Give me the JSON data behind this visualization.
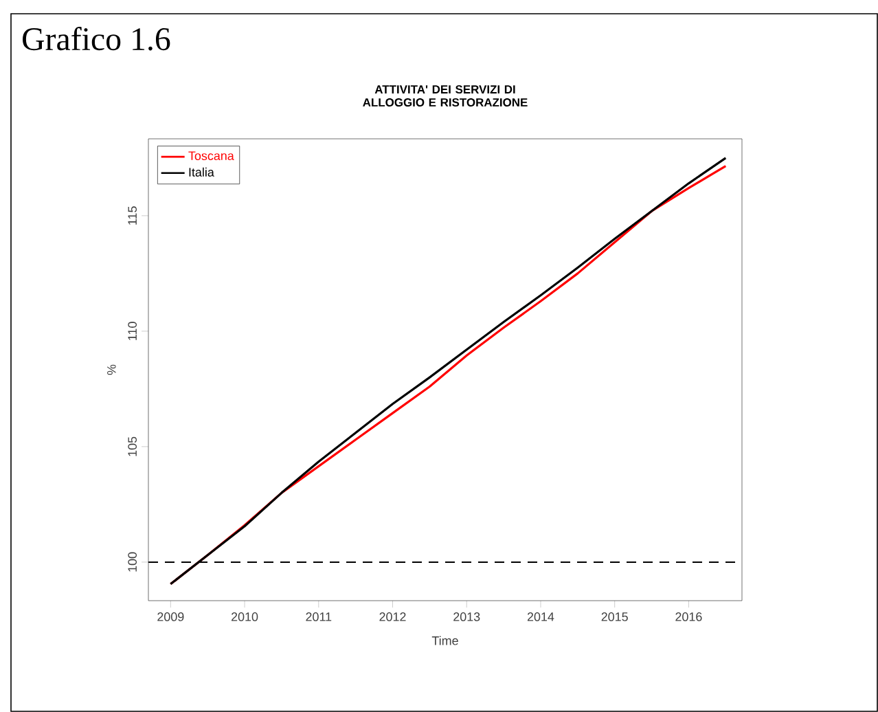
{
  "chart_data": {
    "type": "line",
    "title": "ATTIVITA' DEI SERVIZI DI ALLOGGIO E RISTORAZIONE",
    "xlabel": "Time",
    "ylabel": "%",
    "annotations": [
      "Grafico 1.6"
    ],
    "x": [
      2009,
      2009.5,
      2010,
      2010.5,
      2011,
      2011.5,
      2012,
      2012.5,
      2013,
      2013.5,
      2014,
      2014.5,
      2015,
      2015.5,
      2016,
      2016.5
    ],
    "series": [
      {
        "name": "Toscana",
        "color": "#ff0000",
        "values": [
          99.05,
          100.3,
          101.6,
          103.0,
          104.15,
          105.3,
          106.45,
          107.6,
          108.95,
          110.15,
          111.3,
          112.5,
          113.85,
          115.2,
          116.2,
          117.15
        ]
      },
      {
        "name": "Italia",
        "color": "#000000",
        "values": [
          99.05,
          100.3,
          101.55,
          103.0,
          104.35,
          105.6,
          106.85,
          108.0,
          109.2,
          110.4,
          111.55,
          112.75,
          114.0,
          115.2,
          116.4,
          117.5
        ]
      }
    ],
    "xlim": [
      2008.7,
      2016.72
    ],
    "ylim": [
      98.33,
      118.33
    ],
    "xticks": [
      2009,
      2010,
      2011,
      2012,
      2013,
      2014,
      2015,
      2016
    ],
    "yticks": [
      100,
      105,
      110,
      115
    ],
    "ref_lines": [
      {
        "axis": "y",
        "value": 100,
        "color": "#000000",
        "line_style": "dashed"
      }
    ],
    "grid": false,
    "legend": "top left",
    "marker": "none",
    "line_style": "solid"
  }
}
